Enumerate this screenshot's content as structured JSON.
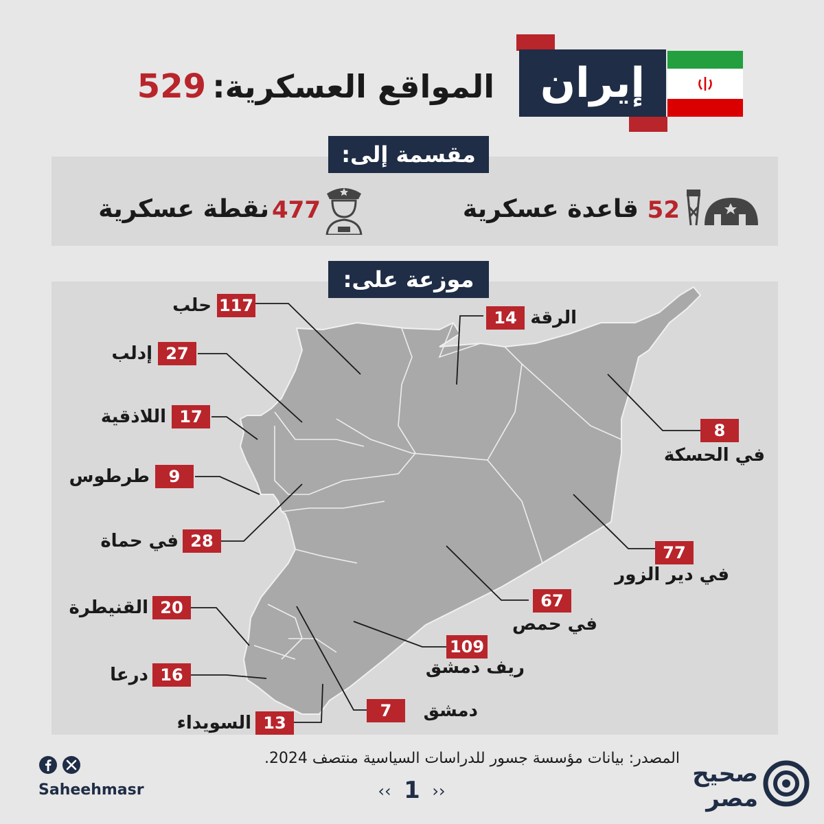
{
  "header": {
    "country": "إيران",
    "title": "المواقع العسكرية:",
    "total": "529",
    "flag_icon": "iran-flag-icon"
  },
  "divided": {
    "heading": "مقسمة إلى:",
    "bases": {
      "count": "52",
      "label": "قاعدة عسكرية",
      "icon": "military-base-icon"
    },
    "points": {
      "count": "477",
      "label": "نقطة عسكرية",
      "icon": "soldier-icon"
    }
  },
  "distributed": {
    "heading": "موزعة على:",
    "regions": [
      {
        "name": "حلب",
        "count": "117"
      },
      {
        "name": "الرقة",
        "count": "14"
      },
      {
        "name": "إدلب",
        "count": "27"
      },
      {
        "name": "اللاذقية",
        "count": "17"
      },
      {
        "name": "في الحسكة",
        "count": "8"
      },
      {
        "name": "طرطوس",
        "count": "9"
      },
      {
        "name": "في حماة",
        "count": "28"
      },
      {
        "name": "في دير الزور",
        "count": "77"
      },
      {
        "name": "في حمص",
        "count": "67"
      },
      {
        "name": "القنيطرة",
        "count": "20"
      },
      {
        "name": "ريف دمشق",
        "count": "109"
      },
      {
        "name": "درعا",
        "count": "16"
      },
      {
        "name": "دمشق",
        "count": "7"
      },
      {
        "name": "السويداء",
        "count": "13"
      }
    ]
  },
  "footer": {
    "source": "المصدر: بيانات مؤسسة جسور للدراسات السياسية منتصف 2024.",
    "page": "1",
    "prev": "‹‹",
    "next": "››",
    "handle": "Saheehmasr",
    "brand_line1": "صحيح",
    "brand_line2": "مصر",
    "social_icons": [
      "facebook-icon",
      "x-icon"
    ]
  },
  "colors": {
    "navy": "#1f2d46",
    "red": "#b8252b",
    "map": "#a9a9a9",
    "panel": "#d9d9d9",
    "background": "#e7e7e7"
  }
}
